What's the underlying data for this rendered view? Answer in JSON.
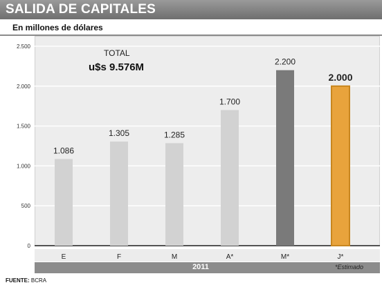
{
  "header": {
    "title": "SALIDA DE CAPITALES",
    "subtitle": "En millones de dólares"
  },
  "annotation": {
    "total_label": "TOTAL",
    "total_value": "u$s 9.576M"
  },
  "footer": {
    "year": "2011",
    "note": "*Estimado",
    "source_label": "FUENTE:",
    "source_value": "BCRA"
  },
  "colors": {
    "regular": "#d2d2d2",
    "highlight_dark": "#7a7a7a",
    "estimate": "#e8a33c",
    "estimate_border": "#c8861f"
  },
  "chart_data": {
    "type": "bar",
    "categories": [
      "E",
      "F",
      "M",
      "A*",
      "M*",
      "J*"
    ],
    "values": [
      1086,
      1305,
      1285,
      1700,
      2200,
      2000
    ],
    "value_labels": [
      "1.086",
      "1.305",
      "1.285",
      "1.700",
      "2.200",
      "2.000"
    ],
    "bar_styles": [
      "regular",
      "regular",
      "regular",
      "regular",
      "highlight_dark",
      "estimate"
    ],
    "title": "SALIDA DE CAPITALES",
    "subtitle": "En millones de dólares",
    "ylim": [
      0,
      2500
    ],
    "yticks": [
      0,
      500,
      1000,
      1500,
      2000,
      2500
    ],
    "ytick_labels": [
      "0",
      "500",
      "1.000",
      "1.500",
      "2.000",
      "2.500"
    ],
    "grid": true
  }
}
